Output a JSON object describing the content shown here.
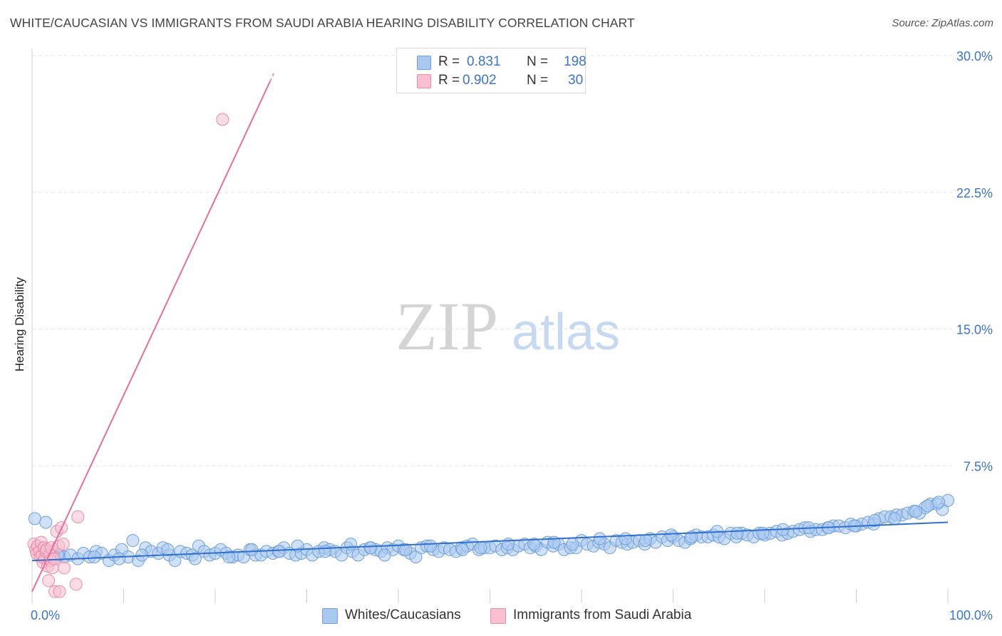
{
  "title": "WHITE/CAUCASIAN VS IMMIGRANTS FROM SAUDI ARABIA HEARING DISABILITY CORRELATION CHART",
  "source": "Source: ZipAtlas.com",
  "watermark": {
    "zip": "ZIP",
    "atlas": "atlas"
  },
  "legend": {
    "r_label": "R =",
    "n_label": "N =",
    "series": [
      {
        "r": "0.831",
        "n": "198"
      },
      {
        "r": "0.902",
        "n": "30"
      }
    ]
  },
  "bottom_legend": [
    "Whites/Caucasians",
    "Immigrants from Saudi Arabia"
  ],
  "colors": {
    "blue_fill": "#a9c8f0",
    "blue_stroke": "#6f9fdc",
    "blue_line": "#2f6fd0",
    "pink_fill": "#f7bfd0",
    "pink_stroke": "#e98aaa",
    "pink_line": "#e46f9a",
    "grid": "#e4e4e4",
    "tick_text": "#3b73c7"
  },
  "chart_data": {
    "type": "scatter",
    "title": "WHITE/CAUCASIAN VS IMMIGRANTS FROM SAUDI ARABIA HEARING DISABILITY CORRELATION CHART",
    "xlabel": "",
    "ylabel": "Hearing Disability",
    "xlim": [
      0,
      100
    ],
    "ylim": [
      0,
      30
    ],
    "x_tick_labels": [
      "0.0%",
      "100.0%"
    ],
    "y_ticks": [
      7.5,
      15.0,
      22.5,
      30.0
    ],
    "y_tick_labels": [
      "7.5%",
      "15.0%",
      "22.5%",
      "30.0%"
    ],
    "series": [
      {
        "name": "Whites/Caucasians",
        "r": 0.831,
        "n": 198,
        "trend": {
          "x0": 0,
          "y0": 2.3,
          "x1": 100,
          "y1": 4.4
        },
        "points": [
          [
            0.3,
            4.6
          ],
          [
            1.5,
            4.4
          ],
          [
            2.2,
            2.8
          ],
          [
            3.0,
            2.6
          ],
          [
            3.5,
            2.5
          ],
          [
            4.2,
            2.6
          ],
          [
            5.0,
            2.4
          ],
          [
            5.6,
            2.7
          ],
          [
            6.3,
            2.5
          ],
          [
            7.0,
            2.8
          ],
          [
            7.6,
            2.7
          ],
          [
            8.4,
            2.3
          ],
          [
            9.0,
            2.6
          ],
          [
            9.8,
            2.9
          ],
          [
            10.5,
            2.5
          ],
          [
            11.0,
            3.4
          ],
          [
            11.6,
            2.3
          ],
          [
            12.4,
            3.0
          ],
          [
            13.0,
            2.8
          ],
          [
            13.8,
            2.7
          ],
          [
            14.3,
            3.0
          ],
          [
            15.0,
            2.6
          ],
          [
            15.6,
            2.3
          ],
          [
            16.2,
            2.8
          ],
          [
            16.9,
            2.7
          ],
          [
            17.5,
            2.6
          ],
          [
            18.2,
            3.1
          ],
          [
            18.8,
            2.8
          ],
          [
            19.4,
            2.6
          ],
          [
            20.0,
            2.7
          ],
          [
            20.6,
            2.9
          ],
          [
            21.2,
            2.7
          ],
          [
            21.9,
            2.5
          ],
          [
            22.5,
            2.6
          ],
          [
            23.1,
            2.5
          ],
          [
            23.8,
            2.9
          ],
          [
            24.4,
            2.6
          ],
          [
            25.0,
            2.6
          ],
          [
            25.6,
            2.8
          ],
          [
            26.3,
            2.7
          ],
          [
            26.9,
            2.8
          ],
          [
            27.5,
            3.0
          ],
          [
            28.1,
            2.7
          ],
          [
            28.8,
            2.6
          ],
          [
            29.4,
            2.7
          ],
          [
            30.0,
            2.9
          ],
          [
            30.6,
            2.6
          ],
          [
            31.3,
            2.8
          ],
          [
            31.9,
            3.0
          ],
          [
            32.5,
            2.9
          ],
          [
            33.1,
            2.8
          ],
          [
            33.8,
            2.6
          ],
          [
            34.4,
            3.0
          ],
          [
            35.0,
            2.8
          ],
          [
            35.6,
            2.6
          ],
          [
            36.3,
            2.9
          ],
          [
            36.9,
            3.0
          ],
          [
            37.5,
            2.9
          ],
          [
            38.1,
            2.8
          ],
          [
            38.8,
            3.0
          ],
          [
            39.4,
            2.9
          ],
          [
            40.0,
            3.1
          ],
          [
            40.6,
            2.9
          ],
          [
            41.3,
            2.7
          ],
          [
            41.9,
            2.5
          ],
          [
            42.5,
            3.0
          ],
          [
            43.1,
            3.1
          ],
          [
            43.8,
            2.9
          ],
          [
            44.4,
            2.8
          ],
          [
            45.0,
            3.0
          ],
          [
            45.6,
            2.9
          ],
          [
            46.3,
            2.8
          ],
          [
            46.9,
            3.0
          ],
          [
            47.5,
            3.1
          ],
          [
            48.1,
            3.2
          ],
          [
            48.8,
            2.9
          ],
          [
            49.4,
            3.0
          ],
          [
            50.0,
            3.0
          ],
          [
            50.6,
            3.1
          ],
          [
            51.3,
            2.9
          ],
          [
            51.9,
            3.0
          ],
          [
            52.5,
            2.9
          ],
          [
            53.1,
            3.1
          ],
          [
            53.8,
            3.2
          ],
          [
            54.4,
            3.0
          ],
          [
            55.0,
            3.1
          ],
          [
            55.6,
            2.9
          ],
          [
            56.3,
            3.3
          ],
          [
            56.9,
            3.1
          ],
          [
            57.5,
            3.2
          ],
          [
            58.1,
            2.9
          ],
          [
            58.8,
            3.0
          ],
          [
            59.4,
            3.0
          ],
          [
            60.0,
            3.4
          ],
          [
            60.6,
            3.2
          ],
          [
            61.3,
            3.1
          ],
          [
            61.9,
            3.3
          ],
          [
            62.5,
            3.2
          ],
          [
            63.1,
            3.0
          ],
          [
            63.8,
            3.4
          ],
          [
            64.4,
            3.3
          ],
          [
            65.0,
            3.2
          ],
          [
            65.6,
            3.3
          ],
          [
            66.3,
            3.4
          ],
          [
            66.9,
            3.2
          ],
          [
            67.5,
            3.5
          ],
          [
            68.1,
            3.3
          ],
          [
            68.8,
            3.6
          ],
          [
            69.4,
            3.4
          ],
          [
            70.0,
            3.6
          ],
          [
            70.6,
            3.4
          ],
          [
            71.3,
            3.3
          ],
          [
            71.9,
            3.5
          ],
          [
            72.5,
            3.7
          ],
          [
            73.1,
            3.6
          ],
          [
            73.8,
            3.6
          ],
          [
            74.4,
            3.7
          ],
          [
            75.0,
            3.6
          ],
          [
            75.6,
            3.5
          ],
          [
            76.3,
            3.8
          ],
          [
            76.9,
            3.6
          ],
          [
            77.5,
            3.8
          ],
          [
            78.1,
            3.7
          ],
          [
            78.8,
            3.6
          ],
          [
            79.4,
            3.8
          ],
          [
            80.0,
            3.7
          ],
          [
            80.6,
            3.8
          ],
          [
            81.3,
            3.9
          ],
          [
            81.9,
            3.7
          ],
          [
            82.5,
            3.8
          ],
          [
            83.1,
            3.9
          ],
          [
            83.8,
            4.0
          ],
          [
            84.4,
            4.1
          ],
          [
            85.0,
            3.9
          ],
          [
            85.6,
            4.0
          ],
          [
            86.3,
            4.0
          ],
          [
            86.9,
            4.1
          ],
          [
            87.5,
            4.2
          ],
          [
            88.1,
            4.2
          ],
          [
            88.8,
            4.1
          ],
          [
            89.4,
            4.3
          ],
          [
            90.0,
            4.2
          ],
          [
            90.6,
            4.3
          ],
          [
            91.3,
            4.4
          ],
          [
            91.9,
            4.3
          ],
          [
            92.5,
            4.6
          ],
          [
            93.1,
            4.7
          ],
          [
            93.8,
            4.7
          ],
          [
            94.4,
            4.8
          ],
          [
            95.0,
            4.8
          ],
          [
            95.6,
            4.9
          ],
          [
            96.3,
            5.0
          ],
          [
            96.9,
            4.9
          ],
          [
            97.5,
            5.2
          ],
          [
            98.1,
            5.4
          ],
          [
            98.8,
            5.4
          ],
          [
            99.4,
            5.1
          ],
          [
            100.0,
            5.6
          ],
          [
            1.0,
            3.0
          ],
          [
            2.8,
            2.6
          ],
          [
            6.8,
            2.5
          ],
          [
            9.5,
            2.4
          ],
          [
            12.0,
            2.6
          ],
          [
            14.8,
            2.9
          ],
          [
            17.8,
            2.4
          ],
          [
            21.5,
            2.5
          ],
          [
            24.0,
            2.9
          ],
          [
            27.0,
            2.8
          ],
          [
            29.0,
            3.1
          ],
          [
            32.0,
            2.8
          ],
          [
            34.8,
            3.2
          ],
          [
            37.0,
            3.0
          ],
          [
            38.5,
            2.6
          ],
          [
            40.8,
            2.9
          ],
          [
            43.5,
            3.1
          ],
          [
            47.0,
            2.9
          ],
          [
            49.0,
            3.0
          ],
          [
            52.0,
            3.2
          ],
          [
            54.8,
            3.2
          ],
          [
            57.0,
            3.3
          ],
          [
            59.0,
            3.2
          ],
          [
            62.0,
            3.5
          ],
          [
            64.8,
            3.5
          ],
          [
            67.0,
            3.4
          ],
          [
            69.8,
            3.7
          ],
          [
            72.0,
            3.6
          ],
          [
            74.8,
            3.9
          ],
          [
            77.0,
            3.8
          ],
          [
            79.8,
            3.8
          ],
          [
            82.0,
            4.0
          ],
          [
            84.8,
            4.1
          ],
          [
            87.0,
            4.1
          ],
          [
            89.8,
            4.2
          ],
          [
            92.0,
            4.5
          ],
          [
            94.2,
            4.6
          ],
          [
            96.5,
            5.0
          ],
          [
            97.8,
            5.3
          ],
          [
            99.0,
            5.5
          ]
        ]
      },
      {
        "name": "Immigrants from Saudi Arabia",
        "r": 0.902,
        "n": 30,
        "trend": {
          "x0": 0,
          "y0": 0.6,
          "x1": 26.0,
          "y1": 28.6,
          "dash_to_x": 26.5
        },
        "points": [
          [
            0.2,
            3.2
          ],
          [
            0.4,
            2.9
          ],
          [
            0.5,
            2.7
          ],
          [
            0.6,
            3.1
          ],
          [
            0.8,
            2.8
          ],
          [
            0.9,
            2.5
          ],
          [
            1.0,
            3.3
          ],
          [
            1.1,
            2.6
          ],
          [
            1.2,
            2.2
          ],
          [
            1.3,
            3.0
          ],
          [
            1.4,
            2.4
          ],
          [
            1.5,
            2.8
          ],
          [
            1.6,
            2.9
          ],
          [
            1.7,
            2.0
          ],
          [
            1.8,
            1.2
          ],
          [
            1.9,
            2.6
          ],
          [
            2.0,
            2.3
          ],
          [
            2.1,
            3.0
          ],
          [
            2.2,
            1.9
          ],
          [
            2.4,
            2.4
          ],
          [
            2.5,
            0.6
          ],
          [
            2.7,
            3.9
          ],
          [
            2.9,
            3.1
          ],
          [
            3.0,
            0.6
          ],
          [
            3.2,
            4.1
          ],
          [
            3.4,
            3.2
          ],
          [
            3.5,
            1.9
          ],
          [
            4.8,
            1.0
          ],
          [
            5.0,
            4.7
          ],
          [
            20.8,
            26.5
          ]
        ]
      }
    ]
  }
}
